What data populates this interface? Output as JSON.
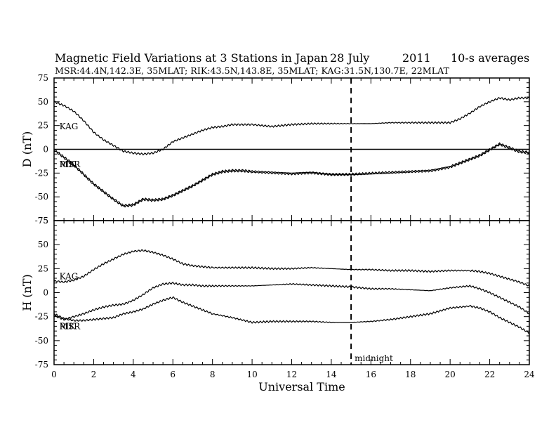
{
  "chart_data": {
    "type": "line",
    "title": "Magnetic Field Variations at 3 Stations in Japan",
    "title_date": "28 July",
    "title_year": "2011",
    "title_avg": "10-s averages",
    "subtitle": "MSR:44.4N,142.3E, 35MLAT;  RIK:43.5N,143.8E, 35MLAT;  KAG:31.5N,130.7E, 22MLAT",
    "xlabel": "Universal Time",
    "xlim": [
      0,
      24
    ],
    "x_ticks": [
      "0",
      "2",
      "4",
      "6",
      "8",
      "10",
      "12",
      "14",
      "16",
      "18",
      "20",
      "22",
      "24"
    ],
    "midnight_x": 15,
    "midnight_label": "midnight",
    "panels": [
      {
        "name": "D",
        "ylabel": "D (nT)",
        "ylim": [
          -75,
          75
        ],
        "y_ticks": [
          "75",
          "50",
          "25",
          "0",
          "-25",
          "-50",
          "-75"
        ],
        "zero_line": true,
        "labels": [
          {
            "text": "KAG",
            "x": 0.2,
            "y": 24
          },
          {
            "text": "MSR",
            "x": 0.2,
            "y": -16
          },
          {
            "text": "RIK",
            "x": 0.2,
            "y": -16
          }
        ],
        "series": [
          {
            "x": [
              0,
              0.5,
              1,
              1.5,
              2,
              2.5,
              3,
              3.5,
              4,
              4.5,
              5,
              5.5,
              6,
              6.5,
              7,
              7.5,
              8,
              8.5,
              9,
              9.5,
              10,
              11,
              12,
              13,
              14,
              15,
              16,
              17,
              18,
              19,
              20,
              20.5,
              21,
              21.5,
              22,
              22.5,
              23,
              23.5,
              24
            ],
            "y": [
              50,
              46,
              40,
              30,
              18,
              10,
              4,
              -2,
              -4,
              -5,
              -4,
              0,
              8,
              12,
              16,
              20,
              23,
              24,
              26,
              26,
              26,
              24,
              26,
              27,
              27,
              27,
              27,
              28,
              28,
              28,
              28,
              32,
              38,
              45,
              50,
              54,
              52,
              54,
              54
            ]
          },
          {
            "x": [
              0,
              0.5,
              1,
              1.5,
              2,
              2.5,
              3,
              3.5,
              4,
              4.5,
              5,
              5.5,
              6,
              6.5,
              7,
              7.5,
              8,
              8.5,
              9,
              9.5,
              10,
              11,
              12,
              13,
              14,
              15,
              16,
              17,
              18,
              19,
              20,
              20.5,
              21,
              21.5,
              22,
              22.5,
              23,
              23.5,
              24
            ],
            "y": [
              0,
              -8,
              -16,
              -26,
              -36,
              -44,
              -52,
              -59,
              -58,
              -52,
              -53,
              -52,
              -48,
              -43,
              -38,
              -32,
              -26,
              -23,
              -22,
              -22,
              -23,
              -24,
              -25,
              -24,
              -26,
              -26,
              -25,
              -24,
              -23,
              -22,
              -18,
              -14,
              -10,
              -6,
              0,
              6,
              2,
              -2,
              -3
            ]
          },
          {
            "x": [
              0,
              0.5,
              1,
              1.5,
              2,
              2.5,
              3,
              3.5,
              4,
              4.5,
              5,
              5.5,
              6,
              6.5,
              7,
              7.5,
              8,
              8.5,
              9,
              9.5,
              10,
              11,
              12,
              13,
              14,
              15,
              16,
              17,
              18,
              19,
              20,
              20.5,
              21,
              21.5,
              22,
              22.5,
              23,
              23.5,
              24
            ],
            "y": [
              -1,
              -9,
              -17,
              -27,
              -37,
              -45,
              -53,
              -60,
              -59,
              -53,
              -54,
              -53,
              -49,
              -44,
              -39,
              -33,
              -27,
              -24,
              -23,
              -23,
              -24,
              -25,
              -26,
              -25,
              -27,
              -27,
              -26,
              -25,
              -24,
              -23,
              -19,
              -15,
              -11,
              -7,
              -1,
              5,
              1,
              -3,
              -4
            ]
          }
        ]
      },
      {
        "name": "H",
        "ylabel": "H (nT)",
        "ylim": [
          -75,
          75
        ],
        "y_ticks": [
          "75",
          "50",
          "25",
          "0",
          "-25",
          "-50",
          "-75"
        ],
        "zero_line": false,
        "labels": [
          {
            "text": "KAG",
            "x": 0.2,
            "y": 17
          },
          {
            "text": "MSR",
            "x": 0.2,
            "y": -35
          },
          {
            "text": "RIK",
            "x": 0.2,
            "y": -35
          }
        ],
        "series": [
          {
            "x": [
              0,
              0.5,
              1,
              1.5,
              2,
              2.5,
              3,
              3.5,
              4,
              4.5,
              5,
              5.5,
              6,
              6.5,
              7,
              7.5,
              8,
              9,
              10,
              11,
              12,
              13,
              14,
              15,
              16,
              17,
              18,
              19,
              20,
              21,
              21.5,
              22,
              22.5,
              23,
              23.5,
              24
            ],
            "y": [
              12,
              11,
              13,
              17,
              24,
              30,
              35,
              40,
              43,
              44,
              42,
              39,
              35,
              30,
              28,
              27,
              26,
              26,
              26,
              25,
              25,
              26,
              25,
              24,
              24,
              23,
              23,
              22,
              23,
              23,
              22,
              20,
              17,
              14,
              11,
              7
            ]
          },
          {
            "x": [
              0,
              0.5,
              1,
              1.5,
              2,
              2.5,
              3,
              3.5,
              4,
              4.5,
              5,
              5.5,
              6,
              6.5,
              7,
              7.5,
              8,
              9,
              10,
              11,
              12,
              13,
              14,
              15,
              16,
              17,
              18,
              19,
              20,
              21,
              21.5,
              22,
              22.5,
              23,
              23.5,
              24
            ],
            "y": [
              -24,
              -28,
              -25,
              -22,
              -18,
              -15,
              -13,
              -12,
              -8,
              -2,
              5,
              9,
              10,
              8,
              8,
              7,
              7,
              7,
              7,
              8,
              9,
              8,
              7,
              6,
              4,
              4,
              3,
              2,
              5,
              7,
              4,
              0,
              -5,
              -10,
              -15,
              -22
            ]
          },
          {
            "x": [
              0,
              0.5,
              1,
              1.5,
              2,
              2.5,
              3,
              3.5,
              4,
              4.5,
              5,
              5.5,
              6,
              6.5,
              7,
              7.5,
              8,
              9,
              10,
              11,
              12,
              13,
              14,
              15,
              16,
              17,
              18,
              19,
              20,
              21,
              21.5,
              22,
              22.5,
              23,
              23.5,
              24
            ],
            "y": [
              -22,
              -27,
              -29,
              -29,
              -28,
              -27,
              -26,
              -22,
              -20,
              -17,
              -12,
              -8,
              -5,
              -10,
              -14,
              -18,
              -22,
              -26,
              -31,
              -30,
              -30,
              -30,
              -31,
              -31,
              -30,
              -28,
              -25,
              -22,
              -16,
              -14,
              -16,
              -20,
              -26,
              -31,
              -36,
              -42
            ]
          }
        ]
      }
    ]
  }
}
